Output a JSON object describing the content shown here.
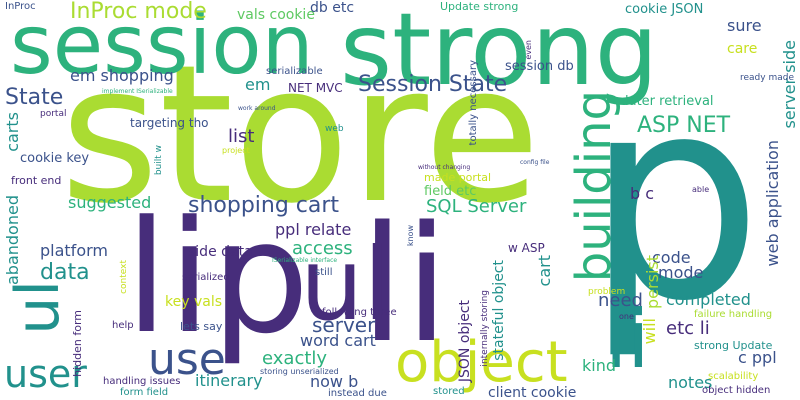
{
  "palette": {
    "purple": "#472d7b",
    "blue": "#3b528b",
    "teal": "#21918c",
    "green": "#2db27d",
    "lime": "#5ec962",
    "yellow": "#aadc32",
    "gold": "#c8e020",
    "darkpurple": "#440154"
  },
  "words": [
    "store",
    "p",
    "session",
    "strong",
    "li",
    "ul",
    "li",
    "ul",
    "lip",
    "object",
    "user",
    "use",
    "building",
    "Session State",
    "shopping cart",
    "ASP NET",
    "InProc mode",
    "vals cookie",
    "db etc",
    "Update strong",
    "session db",
    "cookie JSON",
    "sure",
    "care",
    "serializable",
    "em shopping",
    "em",
    "NET MVC",
    "State",
    "later retrieval",
    "list",
    "targeting tho",
    "carts",
    "cookie key",
    "front end",
    "abandoned",
    "suggested",
    "platform",
    "data",
    "SQL Server",
    "ppl relate",
    "access",
    "side data",
    "server",
    "word cart",
    "key vals",
    "exactly",
    "itinerary",
    "now b",
    "code",
    "mode",
    "web application",
    "server side",
    "etc li",
    "c ppl",
    "kind",
    "notes",
    "completed",
    "need",
    "will",
    "persist",
    "b c",
    "cart",
    "client cookie",
    "JSON object",
    "stateful object",
    "field etc",
    "made portal",
    "w ASP",
    "still",
    "serialized",
    "following three",
    "lets say",
    "help",
    "hidden form",
    "handling issues",
    "storing unserialized",
    "form field",
    "instead due",
    "stored",
    "strong Update",
    "object hidden",
    "failure handling",
    "scalability",
    "totally necessary",
    "internally storing",
    "ready made",
    "work around",
    "implement ISerializable",
    "portal",
    "InProc",
    "even",
    "config file",
    "without changing",
    "project",
    "web",
    "built w",
    "ISerializable interface",
    "context",
    "problem",
    "know",
    "one",
    "able"
  ]
}
